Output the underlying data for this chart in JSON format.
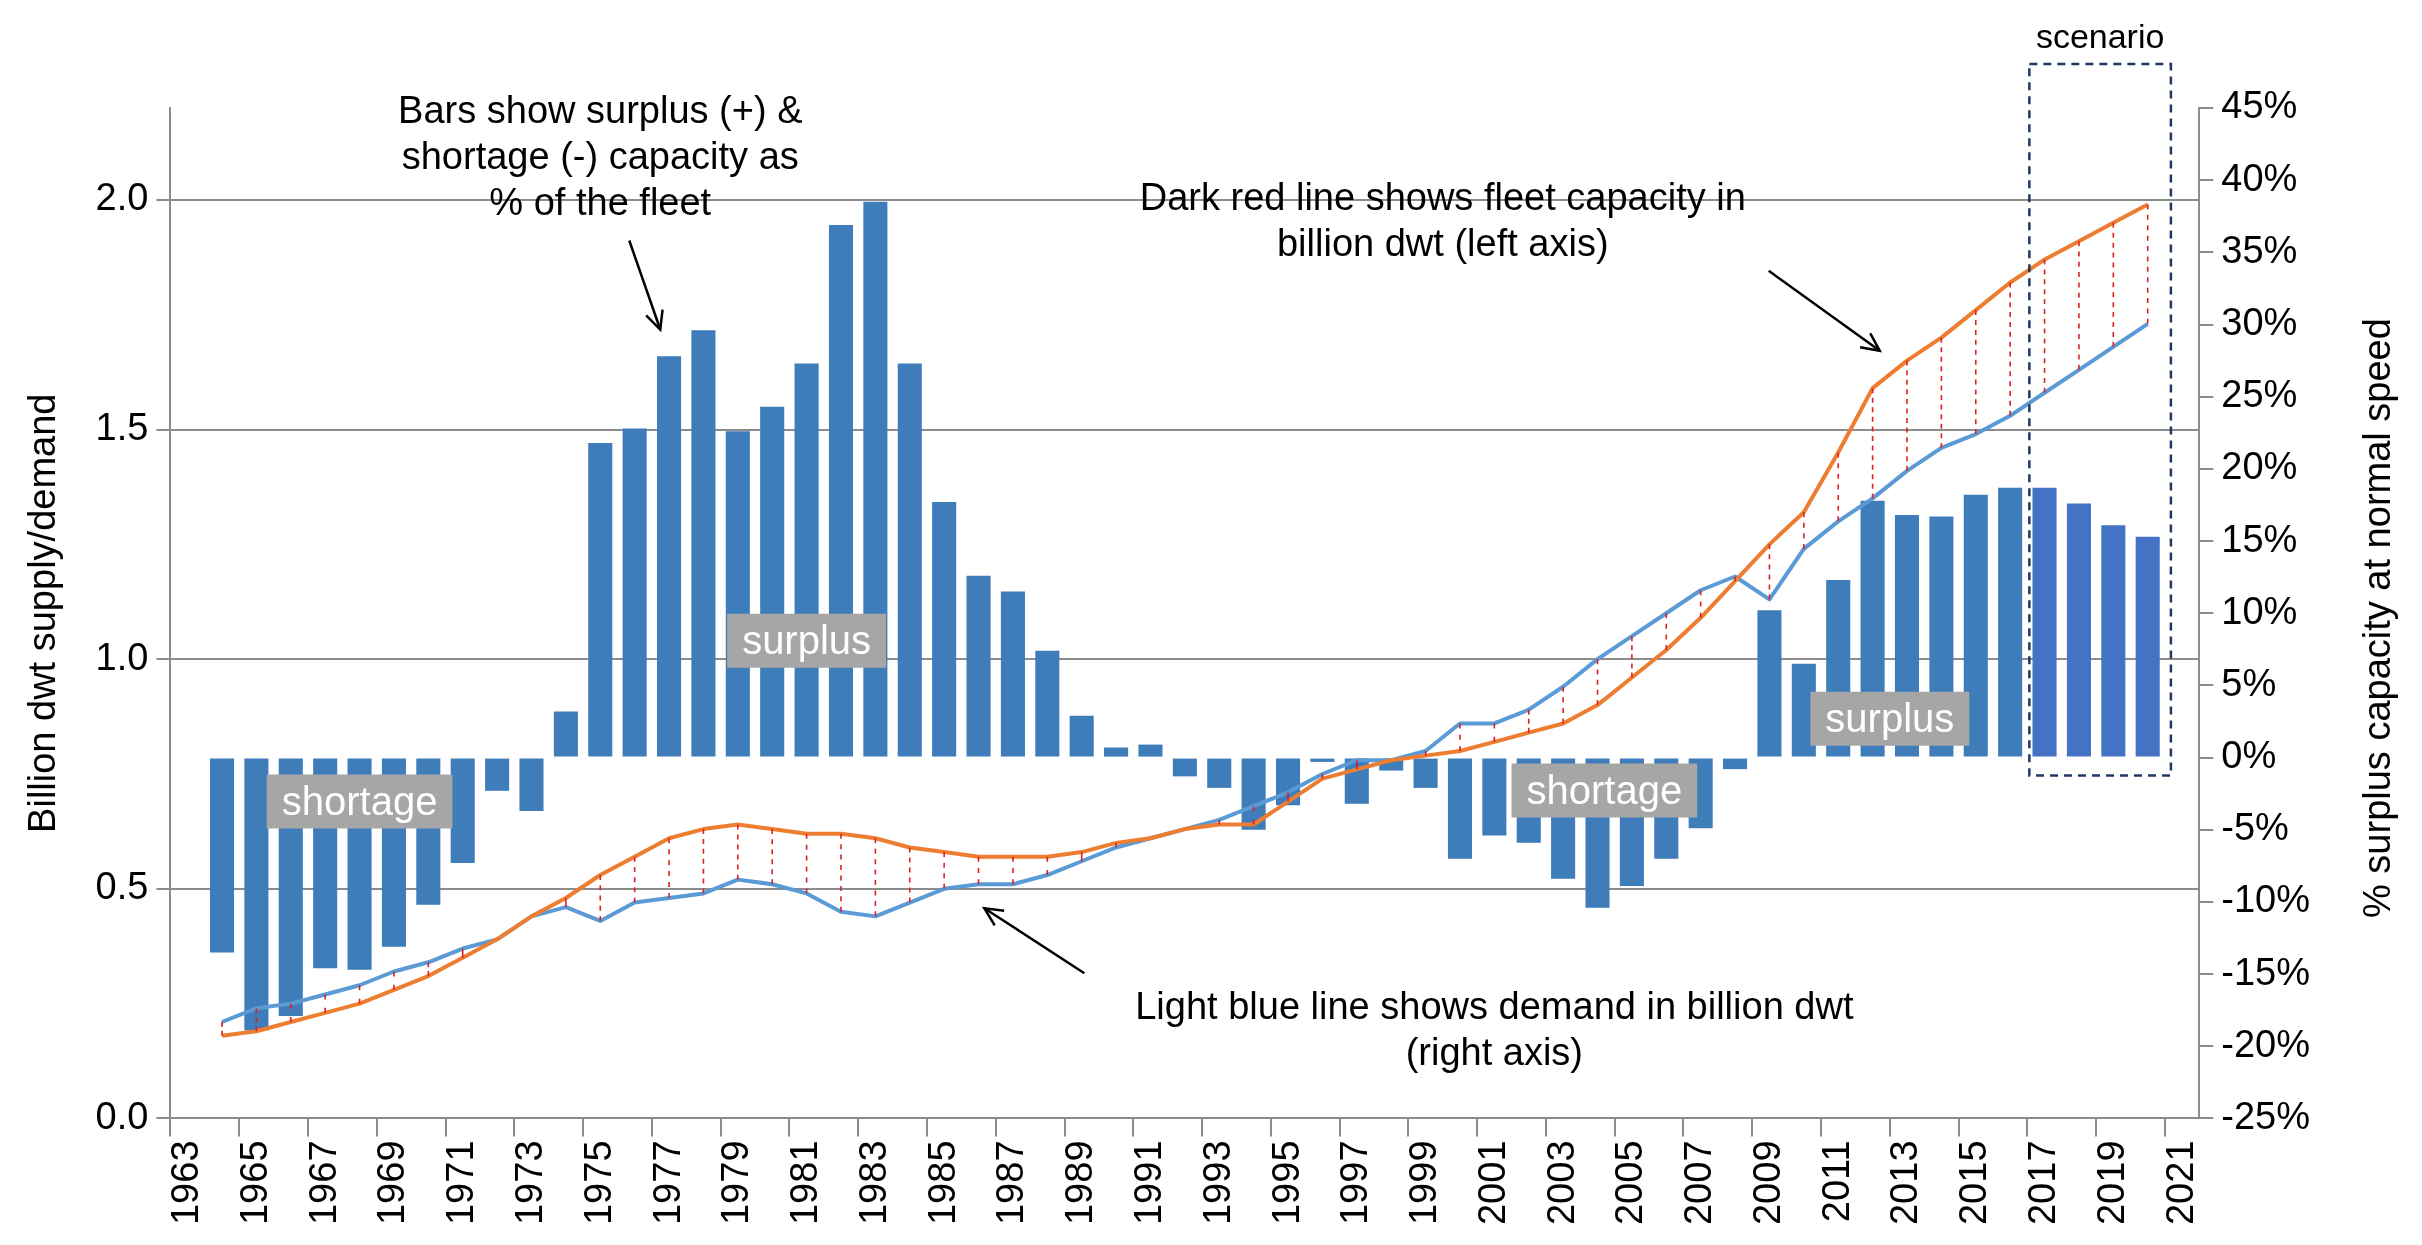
{
  "chart_data": {
    "type": "bar",
    "categories": [
      "1963",
      null,
      "1965",
      null,
      "1967",
      null,
      "1969",
      null,
      "1971",
      null,
      "1973",
      null,
      "1975",
      null,
      "1977",
      null,
      "1979",
      null,
      "1981",
      null,
      "1983",
      null,
      "1985",
      null,
      "1987",
      null,
      "1989",
      null,
      "1991",
      null,
      "1993",
      null,
      "1995",
      null,
      "1997",
      null,
      "1999",
      null,
      "2001",
      null,
      "2003",
      null,
      "2005",
      null,
      "2007",
      null,
      "2009",
      null,
      "2011",
      null,
      "2013",
      null,
      "2015",
      null,
      "2017",
      null,
      "2019",
      null,
      "2021"
    ],
    "series": [
      {
        "axis": "y2",
        "values": [
          null,
          -13.5,
          -18.9,
          -17.9,
          -14.6,
          -14.7,
          -13.1,
          -10.2,
          -7.3,
          -2.3,
          -3.7,
          3.2,
          21.8,
          22.8,
          27.8,
          29.6,
          22.6,
          24.3,
          27.3,
          36.9,
          38.5,
          27.3,
          17.7,
          12.6,
          11.5,
          7.4,
          2.9,
          0.7,
          0.9,
          -1.3,
          -2.1,
          -5.0,
          -3.3,
          -0.3,
          -3.2,
          -0.9,
          -2.1,
          -7.0,
          -5.4,
          -5.9,
          -8.4,
          -10.4,
          -8.9,
          -7.0,
          -4.9,
          -0.8,
          10.2,
          6.5,
          12.3,
          17.8,
          16.8,
          16.7,
          18.2,
          18.7,
          18.7,
          17.6,
          16.1,
          15.3,
          null
        ],
        "colors": [
          "#3f7cba",
          "#3f7cba",
          "#3f7cba",
          "#3f7cba",
          "#3f7cba",
          "#3f7cba",
          "#3f7cba",
          "#3f7cba",
          "#3f7cba",
          "#3f7cba",
          "#3f7cba",
          "#3f7cba",
          "#3f7cba",
          "#3f7cba",
          "#3f7cba",
          "#3f7cba",
          "#3f7cba",
          "#3f7cba",
          "#3f7cba",
          "#3f7cba",
          "#3f7cba",
          "#3f7cba",
          "#3f7cba",
          "#3f7cba",
          "#3f7cba",
          "#3f7cba",
          "#3f7cba",
          "#3f7cba",
          "#3f7cba",
          "#3f7cba",
          "#3f7cba",
          "#3f7cba",
          "#3f7cba",
          "#3f7cba",
          "#3f7cba",
          "#3f7cba",
          "#3f7cba",
          "#3f7cba",
          "#3f7cba",
          "#3f7cba",
          "#3f7cba",
          "#3f7cba",
          "#3f7cba",
          "#3f7cba",
          "#3f7cba",
          "#3f7cba",
          "#3f7cba",
          "#3f7cba",
          "#3f7cba",
          "#3f7cba",
          "#3f7cba",
          "#3f7cba",
          "#3f7cba",
          "#3f7cba",
          "#4472c4",
          "#4472c4",
          "#4472c4",
          "#4472c4",
          "#3f7cba"
        ]
      },
      {
        "type": "line",
        "axis": "y",
        "color": "#ed7d31",
        "values": [
          null,
          0.18,
          0.19,
          0.21,
          0.23,
          0.25,
          0.28,
          0.31,
          0.35,
          0.39,
          0.44,
          0.48,
          0.53,
          0.57,
          0.61,
          0.63,
          0.64,
          0.63,
          0.62,
          0.62,
          0.61,
          0.59,
          0.58,
          0.57,
          0.57,
          0.57,
          0.58,
          0.6,
          0.61,
          0.63,
          0.64,
          0.64,
          0.69,
          0.74,
          0.76,
          0.78,
          0.79,
          0.8,
          0.82,
          0.84,
          0.86,
          0.9,
          0.96,
          1.02,
          1.09,
          1.17,
          1.25,
          1.32,
          1.45,
          1.59,
          1.65,
          1.7,
          1.76,
          1.82,
          1.87,
          1.91,
          1.95,
          1.99,
          null
        ],
        "errors": [
          null,
          [
            0.18,
            0.21
          ],
          [
            0.19,
            0.24
          ],
          [
            0.21,
            0.25
          ],
          [
            0.23,
            0.27
          ],
          [
            0.25,
            0.29
          ],
          [
            0.28,
            0.32
          ],
          [
            0.31,
            0.34
          ],
          [
            0.35,
            0.37
          ],
          null,
          null,
          [
            0.46,
            0.48
          ],
          [
            0.43,
            0.53
          ],
          [
            0.47,
            0.57
          ],
          [
            0.48,
            0.61
          ],
          [
            0.49,
            0.63
          ],
          [
            0.52,
            0.64
          ],
          [
            0.51,
            0.63
          ],
          [
            0.49,
            0.62
          ],
          [
            0.45,
            0.62
          ],
          [
            0.44,
            0.61
          ],
          [
            0.47,
            0.59
          ],
          [
            0.5,
            0.58
          ],
          [
            0.51,
            0.57
          ],
          [
            0.51,
            0.57
          ],
          [
            0.53,
            0.57
          ],
          [
            0.56,
            0.58
          ],
          [
            0.59,
            0.6
          ],
          null,
          null,
          [
            0.64,
            0.65
          ],
          [
            0.64,
            0.68
          ],
          [
            0.69,
            0.71
          ],
          [
            0.74,
            0.75
          ],
          [
            0.76,
            0.78
          ],
          null,
          [
            0.79,
            0.8
          ],
          [
            0.8,
            0.86
          ],
          [
            0.82,
            0.86
          ],
          [
            0.84,
            0.89
          ],
          [
            0.86,
            0.94
          ],
          [
            0.9,
            1.0
          ],
          [
            0.96,
            1.05
          ],
          [
            1.02,
            1.1
          ],
          [
            1.09,
            1.15
          ],
          [
            1.17,
            1.18
          ],
          [
            1.13,
            1.25
          ],
          [
            1.24,
            1.32
          ],
          [
            1.3,
            1.45
          ],
          [
            1.35,
            1.59
          ],
          [
            1.41,
            1.65
          ],
          [
            1.46,
            1.7
          ],
          [
            1.49,
            1.76
          ],
          [
            1.53,
            1.82
          ],
          [
            1.58,
            1.87
          ],
          [
            1.63,
            1.91
          ],
          [
            1.68,
            1.95
          ],
          [
            1.73,
            1.99
          ],
          null
        ]
      },
      {
        "type": "line",
        "axis": "y",
        "color": "#5b9bd5",
        "values": [
          null,
          0.21,
          0.24,
          0.25,
          0.27,
          0.29,
          0.32,
          0.34,
          0.37,
          0.39,
          0.44,
          0.46,
          0.43,
          0.47,
          0.48,
          0.49,
          0.52,
          0.51,
          0.49,
          0.45,
          0.44,
          0.47,
          0.5,
          0.51,
          0.51,
          0.53,
          0.56,
          0.59,
          0.61,
          0.63,
          0.65,
          0.68,
          0.71,
          0.75,
          0.78,
          0.78,
          0.8,
          0.86,
          0.86,
          0.89,
          0.94,
          1.0,
          1.05,
          1.1,
          1.15,
          1.18,
          1.13,
          1.24,
          1.3,
          1.35,
          1.41,
          1.46,
          1.49,
          1.53,
          1.58,
          1.63,
          1.68,
          1.73,
          null
        ]
      }
    ],
    "ylabel": "Billion dwt supply/demand",
    "y2label": "% surplus capacity at normal speed",
    "ylim": [
      0,
      2.2
    ],
    "yticks": [
      {
        "value": 0,
        "label": "0.0"
      },
      0.5,
      {
        "value": 1,
        "label": "1.0"
      },
      1.5,
      {
        "value": 2,
        "label": "2.0"
      }
    ],
    "y2lim": [
      -25,
      45
    ],
    "y2ticks": [
      {
        "value": -25,
        "label": "-25%"
      },
      {
        "value": -20,
        "label": "-20%"
      },
      {
        "value": -15,
        "label": "-15%"
      },
      {
        "value": -10,
        "label": "-10%"
      },
      {
        "value": -5,
        "label": "-5%"
      },
      {
        "value": 0,
        "label": "0%"
      },
      {
        "value": 5,
        "label": "5%"
      },
      {
        "value": 10,
        "label": "10%"
      },
      {
        "value": 15,
        "label": "15%"
      },
      {
        "value": 20,
        "label": "20%"
      },
      {
        "value": 25,
        "label": "25%"
      },
      {
        "value": 30,
        "label": "30%"
      },
      {
        "value": 35,
        "label": "35%"
      },
      {
        "value": 40,
        "label": "40%"
      },
      {
        "value": 45,
        "label": "45%"
      }
    ],
    "grid": "y",
    "marker": "none",
    "line_style": "solid",
    "annotations": [
      "Bars show surplus (+) & shortage (-) capacity as % of the fleet",
      "Dark red line shows fleet capacity in billion dwt (left axis)",
      "Light blue line shows demand in billion dwt (right axis)",
      "shortage",
      "surplus",
      "shortage",
      "surplus",
      "scenario"
    ]
  }
}
